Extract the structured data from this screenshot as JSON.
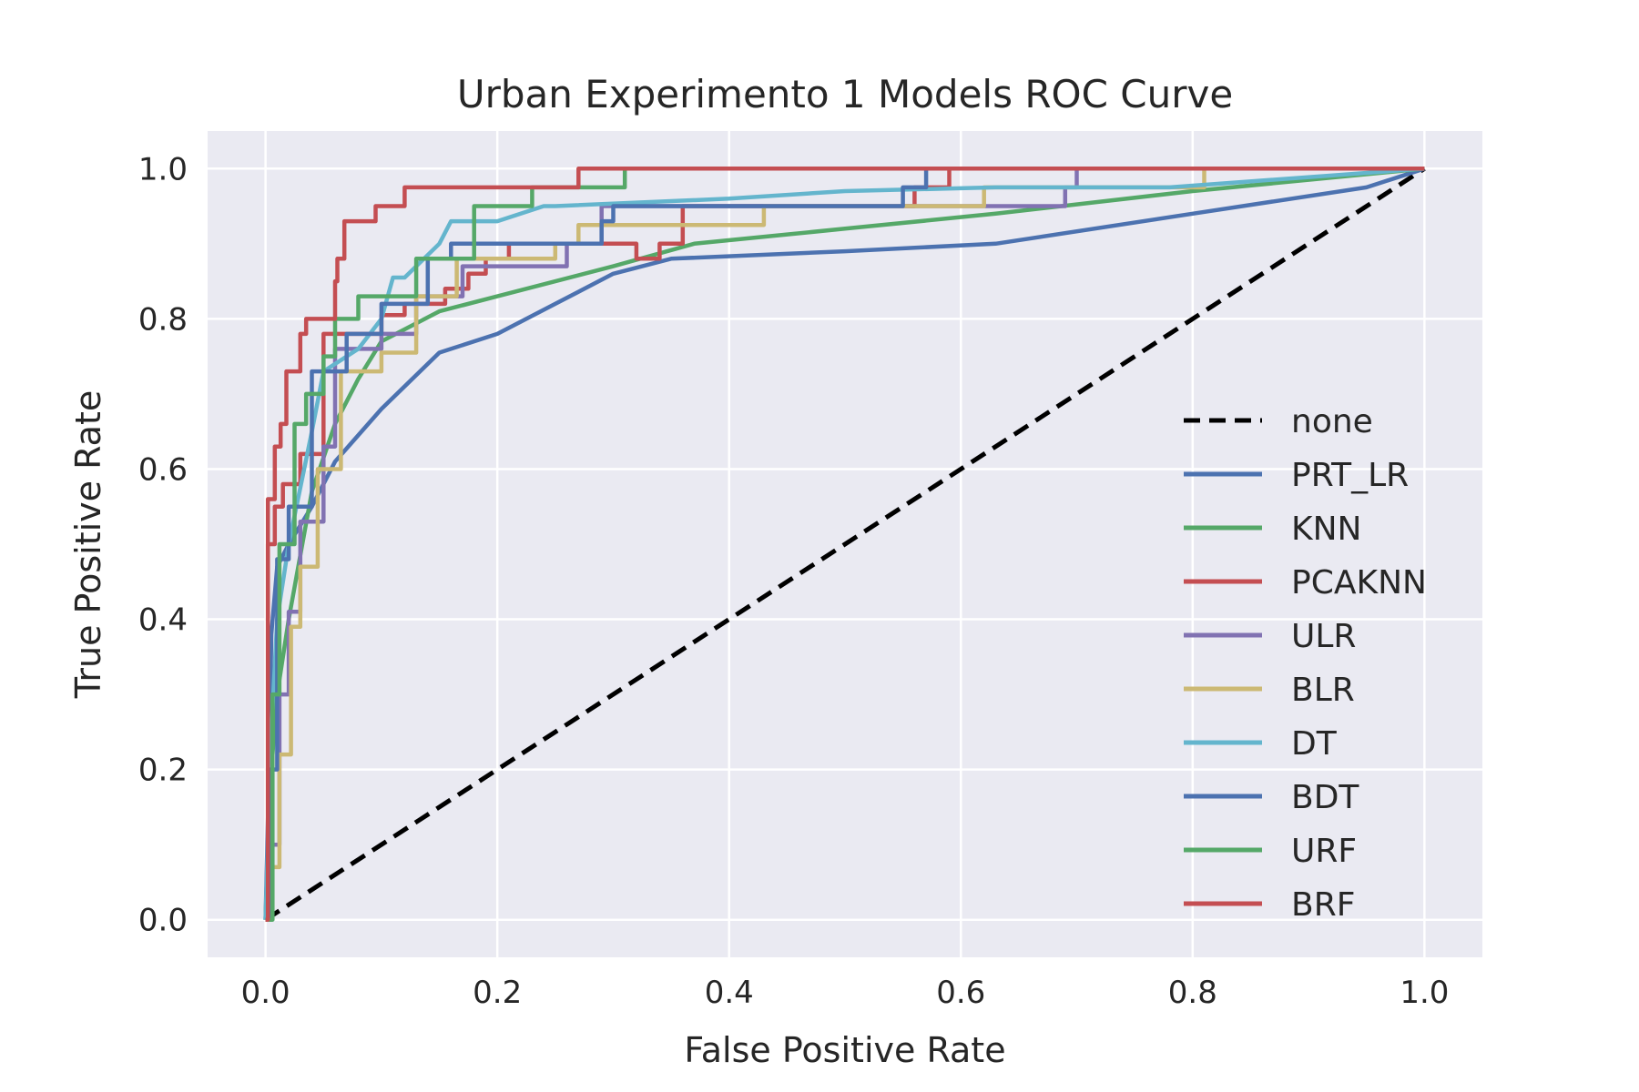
{
  "chart_data": {
    "type": "line",
    "title": "Urban Experimento 1 Models ROC Curve",
    "xlabel": "False Positive Rate",
    "ylabel": "True Positive Rate",
    "xlim": [
      -0.05,
      1.05
    ],
    "ylim": [
      -0.05,
      1.05
    ],
    "xticks": [
      0.0,
      0.2,
      0.4,
      0.6,
      0.8,
      1.0
    ],
    "yticks": [
      0.0,
      0.2,
      0.4,
      0.6,
      0.8,
      1.0
    ],
    "xtick_labels": [
      "0.0",
      "0.2",
      "0.4",
      "0.6",
      "0.8",
      "1.0"
    ],
    "ytick_labels": [
      "0.0",
      "0.2",
      "0.4",
      "0.6",
      "0.8",
      "1.0"
    ],
    "grid": true,
    "background": "#eaeaf2",
    "legend_position": "center-right",
    "series": [
      {
        "name": "none",
        "color": "#000000",
        "dashed": true,
        "x": [
          0,
          1
        ],
        "y": [
          0,
          1
        ]
      },
      {
        "name": "PRT_LR",
        "color": "#4c72b0",
        "x": [
          0,
          0.003,
          0.005,
          0.01,
          0.02,
          0.04,
          0.06,
          0.1,
          0.15,
          0.2,
          0.25,
          0.3,
          0.35,
          0.5,
          0.63,
          0.8,
          0.95,
          1.0
        ],
        "y": [
          0,
          0.2,
          0.38,
          0.47,
          0.5,
          0.55,
          0.61,
          0.68,
          0.755,
          0.78,
          0.82,
          0.86,
          0.88,
          0.89,
          0.9,
          0.94,
          0.975,
          1.0
        ]
      },
      {
        "name": "KNN",
        "color": "#55a868",
        "x": [
          0,
          0.005,
          0.01,
          0.02,
          0.04,
          0.06,
          0.08,
          0.1,
          0.15,
          0.2,
          0.3,
          0.37,
          0.5,
          0.63,
          0.8,
          1.0
        ],
        "y": [
          0,
          0.2,
          0.3,
          0.4,
          0.57,
          0.66,
          0.72,
          0.77,
          0.81,
          0.83,
          0.87,
          0.9,
          0.92,
          0.94,
          0.97,
          1.0
        ]
      },
      {
        "name": "PCAKNN",
        "color": "#c44e52",
        "x": [
          0,
          0.002,
          0.002,
          0.008,
          0.008,
          0.015,
          0.015,
          0.03,
          0.03,
          0.05,
          0.05,
          0.1,
          0.1,
          0.12,
          0.12,
          0.155,
          0.155,
          0.175,
          0.175,
          0.19,
          0.19,
          0.21,
          0.21,
          0.32,
          0.32,
          0.34,
          0.34,
          0.36,
          0.36,
          0.56,
          0.56,
          0.59,
          0.59,
          1.0
        ],
        "y": [
          0,
          0,
          0.5,
          0.5,
          0.55,
          0.55,
          0.58,
          0.58,
          0.62,
          0.62,
          0.78,
          0.78,
          0.805,
          0.805,
          0.82,
          0.82,
          0.84,
          0.84,
          0.86,
          0.86,
          0.88,
          0.88,
          0.9,
          0.9,
          0.88,
          0.88,
          0.9,
          0.9,
          0.95,
          0.95,
          0.975,
          0.975,
          1.0,
          1.0
        ]
      },
      {
        "name": "ULR",
        "color": "#8172b2",
        "x": [
          0,
          0.005,
          0.005,
          0.012,
          0.012,
          0.02,
          0.02,
          0.03,
          0.03,
          0.05,
          0.05,
          0.06,
          0.06,
          0.1,
          0.1,
          0.13,
          0.13,
          0.17,
          0.17,
          0.26,
          0.26,
          0.29,
          0.29,
          0.62,
          0.62,
          0.69,
          0.69,
          0.7,
          0.7,
          1.0
        ],
        "y": [
          0,
          0,
          0.1,
          0.1,
          0.3,
          0.3,
          0.41,
          0.41,
          0.53,
          0.53,
          0.63,
          0.63,
          0.76,
          0.76,
          0.78,
          0.78,
          0.83,
          0.83,
          0.87,
          0.87,
          0.9,
          0.9,
          0.95,
          0.95,
          0.95,
          0.95,
          0.975,
          0.975,
          1.0,
          1.0
        ]
      },
      {
        "name": "BLR",
        "color": "#ccb974",
        "x": [
          0,
          0.005,
          0.005,
          0.012,
          0.012,
          0.022,
          0.022,
          0.03,
          0.03,
          0.045,
          0.045,
          0.065,
          0.065,
          0.1,
          0.1,
          0.13,
          0.13,
          0.165,
          0.165,
          0.25,
          0.25,
          0.27,
          0.27,
          0.43,
          0.43,
          0.62,
          0.62,
          0.81,
          0.81,
          1.0
        ],
        "y": [
          0,
          0,
          0.07,
          0.07,
          0.22,
          0.22,
          0.39,
          0.39,
          0.47,
          0.47,
          0.6,
          0.6,
          0.73,
          0.73,
          0.755,
          0.755,
          0.83,
          0.83,
          0.88,
          0.88,
          0.9,
          0.9,
          0.925,
          0.925,
          0.95,
          0.95,
          0.975,
          0.975,
          1.0,
          1.0
        ]
      },
      {
        "name": "DT",
        "color": "#64b5cd",
        "x": [
          0,
          0.005,
          0.01,
          0.02,
          0.04,
          0.05,
          0.05,
          0.08,
          0.1,
          0.11,
          0.12,
          0.15,
          0.16,
          0.2,
          0.24,
          0.25,
          0.4,
          0.5,
          0.63,
          0.78,
          1.0
        ],
        "y": [
          0,
          0.25,
          0.4,
          0.5,
          0.65,
          0.73,
          0.73,
          0.76,
          0.8,
          0.855,
          0.855,
          0.9,
          0.93,
          0.93,
          0.95,
          0.95,
          0.96,
          0.97,
          0.975,
          0.975,
          1.0
        ]
      },
      {
        "name": "BDT",
        "color": "#4c72b0",
        "x": [
          0,
          0.004,
          0.004,
          0.01,
          0.01,
          0.02,
          0.02,
          0.04,
          0.04,
          0.07,
          0.07,
          0.1,
          0.1,
          0.14,
          0.14,
          0.16,
          0.16,
          0.29,
          0.29,
          0.3,
          0.3,
          0.55,
          0.55,
          0.57,
          0.57,
          1.0
        ],
        "y": [
          0,
          0,
          0.2,
          0.2,
          0.48,
          0.48,
          0.55,
          0.55,
          0.73,
          0.73,
          0.78,
          0.78,
          0.82,
          0.82,
          0.88,
          0.88,
          0.9,
          0.9,
          0.93,
          0.93,
          0.95,
          0.95,
          0.975,
          0.975,
          1.0,
          1.0
        ]
      },
      {
        "name": "URF",
        "color": "#55a868",
        "x": [
          0,
          0.006,
          0.006,
          0.012,
          0.012,
          0.025,
          0.025,
          0.035,
          0.035,
          0.05,
          0.05,
          0.06,
          0.06,
          0.08,
          0.08,
          0.13,
          0.13,
          0.18,
          0.18,
          0.23,
          0.23,
          0.31,
          0.31,
          1.0
        ],
        "y": [
          0,
          0,
          0.3,
          0.3,
          0.5,
          0.5,
          0.66,
          0.66,
          0.7,
          0.7,
          0.75,
          0.75,
          0.8,
          0.8,
          0.83,
          0.83,
          0.88,
          0.88,
          0.95,
          0.95,
          0.975,
          0.975,
          1.0,
          1.0
        ]
      },
      {
        "name": "BRF",
        "color": "#c44e52",
        "x": [
          0,
          0.002,
          0.002,
          0.008,
          0.008,
          0.013,
          0.013,
          0.018,
          0.018,
          0.03,
          0.03,
          0.035,
          0.035,
          0.06,
          0.06,
          0.062,
          0.062,
          0.068,
          0.068,
          0.07,
          0.07,
          0.095,
          0.095,
          0.12,
          0.12,
          0.27,
          0.27,
          1.0
        ],
        "y": [
          0,
          0,
          0.56,
          0.56,
          0.63,
          0.63,
          0.66,
          0.66,
          0.73,
          0.73,
          0.78,
          0.78,
          0.8,
          0.8,
          0.85,
          0.85,
          0.88,
          0.88,
          0.93,
          0.93,
          0.93,
          0.93,
          0.95,
          0.95,
          0.975,
          0.975,
          1.0,
          1.0
        ]
      }
    ]
  }
}
